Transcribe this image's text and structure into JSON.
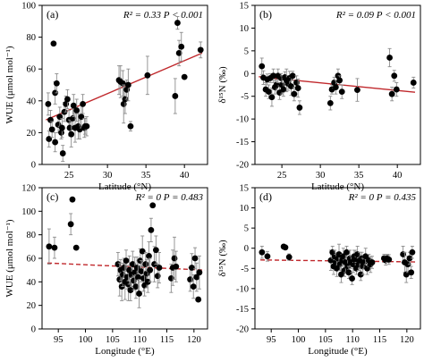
{
  "chart_data": [
    {
      "panel": "(a)",
      "type": "scatter",
      "xlabel": "Latitude (°N)",
      "ylabel": "WUE (μmol mol⁻¹)",
      "xlim": [
        21.5,
        43
      ],
      "ylim": [
        0,
        100
      ],
      "xticks": [
        25,
        30,
        35,
        40
      ],
      "yticks": [
        0,
        20,
        40,
        60,
        80,
        100
      ],
      "stat": "R² = 0.33  P < 0.001",
      "trend": {
        "style": "solid",
        "x": [
          22,
          42.3
        ],
        "y": [
          28,
          70
        ]
      },
      "points": [
        {
          "x": 22.3,
          "y": 38,
          "e": 7
        },
        {
          "x": 22.4,
          "y": 16,
          "e": 5
        },
        {
          "x": 22.6,
          "y": 28,
          "e": 6
        },
        {
          "x": 22.8,
          "y": 22,
          "e": 5
        },
        {
          "x": 23.0,
          "y": 76,
          "e": 0
        },
        {
          "x": 23.2,
          "y": 45,
          "e": 7
        },
        {
          "x": 23.2,
          "y": 14,
          "e": 6
        },
        {
          "x": 23.4,
          "y": 51,
          "e": 6
        },
        {
          "x": 23.6,
          "y": 25,
          "e": 5
        },
        {
          "x": 23.8,
          "y": 30,
          "e": 6
        },
        {
          "x": 24.0,
          "y": 20,
          "e": 4
        },
        {
          "x": 24.1,
          "y": 23,
          "e": 6
        },
        {
          "x": 24.2,
          "y": 7,
          "e": 5
        },
        {
          "x": 24.4,
          "y": 33,
          "e": 6
        },
        {
          "x": 24.6,
          "y": 38,
          "e": 5
        },
        {
          "x": 24.8,
          "y": 41,
          "e": 6
        },
        {
          "x": 25.0,
          "y": 28,
          "e": 6
        },
        {
          "x": 25.1,
          "y": 23,
          "e": 5
        },
        {
          "x": 25.3,
          "y": 19,
          "e": 8
        },
        {
          "x": 25.5,
          "y": 29,
          "e": 6
        },
        {
          "x": 25.6,
          "y": 37,
          "e": 7
        },
        {
          "x": 25.8,
          "y": 23,
          "e": 9
        },
        {
          "x": 26.0,
          "y": 34,
          "e": 7
        },
        {
          "x": 26.2,
          "y": 24,
          "e": 8
        },
        {
          "x": 26.4,
          "y": 22,
          "e": 6
        },
        {
          "x": 26.6,
          "y": 30,
          "e": 7
        },
        {
          "x": 26.8,
          "y": 38,
          "e": 6
        },
        {
          "x": 27.0,
          "y": 23,
          "e": 6
        },
        {
          "x": 27.1,
          "y": 24,
          "e": 5
        },
        {
          "x": 27.3,
          "y": 24,
          "e": 6
        },
        {
          "x": 31.5,
          "y": 53,
          "e": 9
        },
        {
          "x": 31.7,
          "y": 52,
          "e": 10
        },
        {
          "x": 32.0,
          "y": 51,
          "e": 8
        },
        {
          "x": 32.1,
          "y": 38,
          "e": 12
        },
        {
          "x": 32.3,
          "y": 41,
          "e": 9
        },
        {
          "x": 32.5,
          "y": 47,
          "e": 6
        },
        {
          "x": 32.7,
          "y": 50,
          "e": 10
        },
        {
          "x": 33.0,
          "y": 24,
          "e": 3
        },
        {
          "x": 35.2,
          "y": 56,
          "e": 12
        },
        {
          "x": 38.8,
          "y": 43,
          "e": 11
        },
        {
          "x": 39.1,
          "y": 89,
          "e": 4
        },
        {
          "x": 39.3,
          "y": 70,
          "e": 8
        },
        {
          "x": 39.6,
          "y": 74,
          "e": 9
        },
        {
          "x": 40.0,
          "y": 55,
          "e": 0
        },
        {
          "x": 42.1,
          "y": 72,
          "e": 5
        }
      ]
    },
    {
      "panel": "(b)",
      "type": "scatter",
      "xlabel": "Latitude (°N)",
      "ylabel": "δ¹⁵N (‰)",
      "xlim": [
        21.5,
        43
      ],
      "ylim": [
        -20,
        15
      ],
      "xticks": [
        25,
        30,
        35,
        40
      ],
      "yticks": [
        -20,
        -15,
        -10,
        -5,
        0,
        5,
        10,
        15
      ],
      "stat": "R² = 0.09  P < 0.001",
      "trend": {
        "style": "solid",
        "x": [
          22,
          42.3
        ],
        "y": [
          -0.7,
          -4.1
        ]
      },
      "points": [
        {
          "x": 22.4,
          "y": 1.6,
          "e": 1.8
        },
        {
          "x": 22.6,
          "y": -0.9,
          "e": 1.5
        },
        {
          "x": 22.9,
          "y": -3.5,
          "e": 1.5
        },
        {
          "x": 23.1,
          "y": -1.3,
          "e": 1.2
        },
        {
          "x": 23.3,
          "y": -4.0,
          "e": 1.5
        },
        {
          "x": 23.5,
          "y": -1.0,
          "e": 1.0
        },
        {
          "x": 23.7,
          "y": -5.2,
          "e": 2.0
        },
        {
          "x": 23.9,
          "y": -0.5,
          "e": 1.5
        },
        {
          "x": 24.1,
          "y": -3.0,
          "e": 1.5
        },
        {
          "x": 24.3,
          "y": -2.5,
          "e": 1.2
        },
        {
          "x": 24.5,
          "y": -0.5,
          "e": 1.5
        },
        {
          "x": 24.7,
          "y": -4.2,
          "e": 1.5
        },
        {
          "x": 24.9,
          "y": -1.0,
          "e": 1.0
        },
        {
          "x": 25.0,
          "y": -2.5,
          "e": 2.0
        },
        {
          "x": 25.2,
          "y": -3.5,
          "e": 1.5
        },
        {
          "x": 25.4,
          "y": -0.8,
          "e": 1.2
        },
        {
          "x": 25.6,
          "y": -1.5,
          "e": 2.5
        },
        {
          "x": 25.8,
          "y": -2.2,
          "e": 1.5
        },
        {
          "x": 26.0,
          "y": -1.0,
          "e": 1.5
        },
        {
          "x": 26.2,
          "y": -2.8,
          "e": 2.0
        },
        {
          "x": 26.4,
          "y": -0.5,
          "e": 1.0
        },
        {
          "x": 26.6,
          "y": -4.5,
          "e": 1.5
        },
        {
          "x": 26.9,
          "y": -2.0,
          "e": 1.5
        },
        {
          "x": 27.1,
          "y": -3.2,
          "e": 2.0
        },
        {
          "x": 27.3,
          "y": -7.5,
          "e": 1.5
        },
        {
          "x": 31.3,
          "y": -6.5,
          "e": 1.5
        },
        {
          "x": 31.5,
          "y": -3.5,
          "e": 1.0
        },
        {
          "x": 31.8,
          "y": -2.0,
          "e": 1.2
        },
        {
          "x": 32.0,
          "y": -3.0,
          "e": 1.5
        },
        {
          "x": 32.3,
          "y": -0.5,
          "e": 1.5
        },
        {
          "x": 32.5,
          "y": -1.5,
          "e": 1.0
        },
        {
          "x": 32.8,
          "y": -4.0,
          "e": 1.5
        },
        {
          "x": 34.8,
          "y": -3.6,
          "e": 2.5
        },
        {
          "x": 39.0,
          "y": 3.5,
          "e": 2.0
        },
        {
          "x": 39.3,
          "y": -4.5,
          "e": 1.5
        },
        {
          "x": 39.6,
          "y": -0.5,
          "e": 1.2
        },
        {
          "x": 39.9,
          "y": -3.5,
          "e": 1.5
        },
        {
          "x": 42.1,
          "y": -2.0,
          "e": 1.2
        }
      ]
    },
    {
      "panel": "(c)",
      "type": "scatter",
      "xlabel": "Longitude (°E)",
      "ylabel": "WUE (μmol mol⁻¹)",
      "xlim": [
        92,
        122.5
      ],
      "ylim": [
        0,
        120
      ],
      "xticks": [
        95,
        100,
        105,
        110,
        115,
        120
      ],
      "yticks": [
        0,
        20,
        40,
        60,
        80,
        100,
        120
      ],
      "stat": "R² = 0  P = 0.483",
      "trend": {
        "style": "dashed",
        "x": [
          93,
          122
        ],
        "y": [
          56,
          50
        ]
      },
      "points": [
        {
          "x": 93.3,
          "y": 70,
          "e": 15
        },
        {
          "x": 94.3,
          "y": 69,
          "e": 9
        },
        {
          "x": 97.3,
          "y": 89,
          "e": 9
        },
        {
          "x": 97.6,
          "y": 110,
          "e": 0
        },
        {
          "x": 98.3,
          "y": 69,
          "e": 0
        },
        {
          "x": 106.0,
          "y": 55,
          "e": 10
        },
        {
          "x": 106.3,
          "y": 42,
          "e": 14
        },
        {
          "x": 106.5,
          "y": 50,
          "e": 9
        },
        {
          "x": 106.7,
          "y": 36,
          "e": 12
        },
        {
          "x": 106.9,
          "y": 46,
          "e": 10
        },
        {
          "x": 107.1,
          "y": 52,
          "e": 8
        },
        {
          "x": 107.3,
          "y": 40,
          "e": 15
        },
        {
          "x": 107.5,
          "y": 58,
          "e": 9
        },
        {
          "x": 107.7,
          "y": 44,
          "e": 10
        },
        {
          "x": 107.9,
          "y": 38,
          "e": 14
        },
        {
          "x": 108.1,
          "y": 50,
          "e": 12
        },
        {
          "x": 108.3,
          "y": 33,
          "e": 9
        },
        {
          "x": 108.5,
          "y": 46,
          "e": 10
        },
        {
          "x": 108.7,
          "y": 55,
          "e": 11
        },
        {
          "x": 108.9,
          "y": 41,
          "e": 8
        },
        {
          "x": 109.1,
          "y": 48,
          "e": 13
        },
        {
          "x": 109.3,
          "y": 36,
          "e": 10
        },
        {
          "x": 109.5,
          "y": 52,
          "e": 9
        },
        {
          "x": 109.7,
          "y": 44,
          "e": 14
        },
        {
          "x": 109.9,
          "y": 30,
          "e": 12
        },
        {
          "x": 110.1,
          "y": 58,
          "e": 10
        },
        {
          "x": 110.3,
          "y": 49,
          "e": 9
        },
        {
          "x": 110.5,
          "y": 66,
          "e": 13
        },
        {
          "x": 110.7,
          "y": 43,
          "e": 11
        },
        {
          "x": 110.9,
          "y": 37,
          "e": 9
        },
        {
          "x": 111.1,
          "y": 55,
          "e": 10
        },
        {
          "x": 111.3,
          "y": 47,
          "e": 12
        },
        {
          "x": 111.5,
          "y": 40,
          "e": 9
        },
        {
          "x": 111.7,
          "y": 62,
          "e": 12
        },
        {
          "x": 111.9,
          "y": 50,
          "e": 10
        },
        {
          "x": 112.1,
          "y": 84,
          "e": 10
        },
        {
          "x": 112.4,
          "y": 105,
          "e": 0
        },
        {
          "x": 112.7,
          "y": 55,
          "e": 15
        },
        {
          "x": 113.0,
          "y": 67,
          "e": 12
        },
        {
          "x": 113.3,
          "y": 45,
          "e": 10
        },
        {
          "x": 113.6,
          "y": 52,
          "e": 13
        },
        {
          "x": 115.8,
          "y": 43,
          "e": 12
        },
        {
          "x": 116.1,
          "y": 52,
          "e": 15
        },
        {
          "x": 116.4,
          "y": 60,
          "e": 18
        },
        {
          "x": 116.7,
          "y": 53,
          "e": 13
        },
        {
          "x": 119.3,
          "y": 42,
          "e": 10
        },
        {
          "x": 119.6,
          "y": 52,
          "e": 12
        },
        {
          "x": 119.9,
          "y": 36,
          "e": 10
        },
        {
          "x": 120.2,
          "y": 60,
          "e": 9
        },
        {
          "x": 120.5,
          "y": 44,
          "e": 12
        },
        {
          "x": 120.8,
          "y": 25,
          "e": 0
        },
        {
          "x": 121.0,
          "y": 48,
          "e": 14
        }
      ]
    },
    {
      "panel": "(d)",
      "type": "scatter",
      "xlabel": "Longitude (°E)",
      "ylabel": "δ¹⁵N (‰)",
      "xlim": [
        92,
        122.5
      ],
      "ylim": [
        -20,
        15
      ],
      "xticks": [
        95,
        100,
        105,
        110,
        115,
        120
      ],
      "yticks": [
        -20,
        -15,
        -10,
        -5,
        0,
        5,
        10,
        15
      ],
      "stat": "R² = 0  P = 0.435",
      "trend": {
        "style": "dashed",
        "x": [
          93,
          122
        ],
        "y": [
          -2.9,
          -3.4
        ]
      },
      "points": [
        {
          "x": 93.3,
          "y": -1.0,
          "e": 1.5
        },
        {
          "x": 94.3,
          "y": -2.0,
          "e": 1.2
        },
        {
          "x": 97.3,
          "y": 0.4,
          "e": 0.5
        },
        {
          "x": 97.6,
          "y": 0.2,
          "e": 0.4
        },
        {
          "x": 98.3,
          "y": -2.2,
          "e": 0.8
        },
        {
          "x": 106.0,
          "y": -3.0,
          "e": 2.5
        },
        {
          "x": 106.3,
          "y": -1.0,
          "e": 1.5
        },
        {
          "x": 106.5,
          "y": -4.5,
          "e": 2.0
        },
        {
          "x": 106.7,
          "y": -2.0,
          "e": 1.5
        },
        {
          "x": 106.9,
          "y": -3.5,
          "e": 2.0
        },
        {
          "x": 107.1,
          "y": -5.0,
          "e": 2.0
        },
        {
          "x": 107.3,
          "y": -2.5,
          "e": 1.5
        },
        {
          "x": 107.5,
          "y": -1.5,
          "e": 2.5
        },
        {
          "x": 107.7,
          "y": -4.0,
          "e": 1.5
        },
        {
          "x": 107.9,
          "y": -6.5,
          "e": 2.0
        },
        {
          "x": 108.1,
          "y": -3.0,
          "e": 1.5
        },
        {
          "x": 108.3,
          "y": -2.0,
          "e": 2.0
        },
        {
          "x": 108.5,
          "y": -5.5,
          "e": 1.5
        },
        {
          "x": 108.7,
          "y": -3.5,
          "e": 2.5
        },
        {
          "x": 108.9,
          "y": -1.0,
          "e": 1.5
        },
        {
          "x": 109.1,
          "y": -4.5,
          "e": 2.0
        },
        {
          "x": 109.3,
          "y": -6.0,
          "e": 1.5
        },
        {
          "x": 109.5,
          "y": -2.5,
          "e": 2.0
        },
        {
          "x": 109.7,
          "y": -3.5,
          "e": 1.5
        },
        {
          "x": 109.9,
          "y": -7.5,
          "e": 1.5
        },
        {
          "x": 110.1,
          "y": -4.0,
          "e": 2.0
        },
        {
          "x": 110.3,
          "y": -2.0,
          "e": 1.5
        },
        {
          "x": 110.5,
          "y": -3.0,
          "e": 2.5
        },
        {
          "x": 110.7,
          "y": -5.0,
          "e": 1.5
        },
        {
          "x": 110.9,
          "y": -1.5,
          "e": 2.0
        },
        {
          "x": 111.1,
          "y": -4.0,
          "e": 1.5
        },
        {
          "x": 111.3,
          "y": -3.0,
          "e": 2.0
        },
        {
          "x": 111.5,
          "y": -6.5,
          "e": 1.5
        },
        {
          "x": 111.7,
          "y": -2.5,
          "e": 1.5
        },
        {
          "x": 111.9,
          "y": -4.5,
          "e": 2.0
        },
        {
          "x": 112.1,
          "y": -3.5,
          "e": 1.5
        },
        {
          "x": 112.4,
          "y": -2.0,
          "e": 2.0
        },
        {
          "x": 112.7,
          "y": -5.0,
          "e": 1.5
        },
        {
          "x": 113.0,
          "y": -3.0,
          "e": 1.5
        },
        {
          "x": 113.3,
          "y": -4.0,
          "e": 2.0
        },
        {
          "x": 113.6,
          "y": -3.5,
          "e": 1.5
        },
        {
          "x": 115.8,
          "y": -2.5,
          "e": 1.0
        },
        {
          "x": 116.1,
          "y": -3.0,
          "e": 1.2
        },
        {
          "x": 116.4,
          "y": -2.5,
          "e": 1.0
        },
        {
          "x": 116.7,
          "y": -2.8,
          "e": 1.2
        },
        {
          "x": 119.3,
          "y": -1.5,
          "e": 2.0
        },
        {
          "x": 119.6,
          "y": -3.5,
          "e": 2.5
        },
        {
          "x": 119.9,
          "y": -6.5,
          "e": 2.0
        },
        {
          "x": 120.2,
          "y": -4.0,
          "e": 2.0
        },
        {
          "x": 120.5,
          "y": -2.5,
          "e": 1.5
        },
        {
          "x": 120.8,
          "y": -6.0,
          "e": 1.5
        },
        {
          "x": 121.0,
          "y": -1.0,
          "e": 1.5
        }
      ]
    }
  ]
}
